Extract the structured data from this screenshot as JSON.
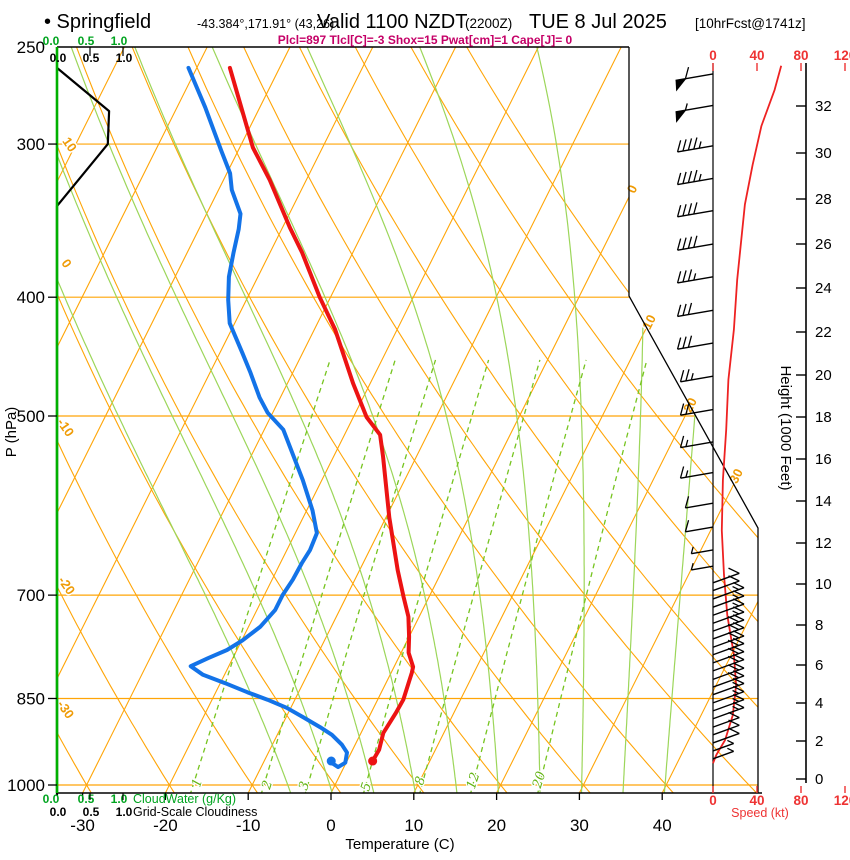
{
  "header": {
    "bullet_station": "• Springfield",
    "coords": "-43.384°,171.91° (43,26)",
    "valid": "Valid 1100 NZDT",
    "zulu": "(2200Z)",
    "date": "TUE 8 Jul 2025",
    "forecast": "[10hrFcst@1741z]",
    "params": "Plcl=897 Tlcl[C]=-3 Shox=15 Pwat[cm]=1 Cape[J]= 0"
  },
  "axes": {
    "pressure_label": "P (hPa)",
    "pressure_ticks": [
      250,
      300,
      400,
      500,
      700,
      850,
      1000
    ],
    "temp_label": "Temperature (C)",
    "temp_ticks": [
      -30,
      -20,
      -10,
      0,
      10,
      20,
      30,
      40
    ],
    "height_label": "Height (1000 Feet)",
    "height_ticks": [
      0,
      2,
      4,
      6,
      8,
      10,
      12,
      14,
      16,
      18,
      20,
      22,
      24,
      26,
      28,
      30,
      32
    ],
    "speed_label": "Speed (kt)",
    "speed_ticks": [
      0,
      40,
      80,
      120
    ],
    "cloudwater_label": "CloudWater (g/Kg)",
    "cloudwater_ticks": [
      "0.0",
      "0.5",
      "1.0"
    ],
    "cloudiness_label": "Grid-Scale Cloudiness",
    "cloudiness_ticks": [
      "0.0",
      "0.5",
      "1.0"
    ]
  },
  "colors": {
    "isotherm_adiabat": "#ffa507",
    "moist_adiabat": "#9cd65a",
    "mixing_ratio": "#76c41f",
    "temperature": "#ec1313",
    "dewpoint": "#1373e8",
    "speed_curve": "#ee2222",
    "speed_axis": "#e33",
    "cloudwater": "#00b000",
    "magenta": "#c50067",
    "boundary": "#000000"
  },
  "chart_data": {
    "type": "line",
    "subtype": "skew-t log-p atmospheric sounding",
    "title": "Springfield sounding valid 1100 NZDT (2200Z) TUE 8 Jul 2025, 10 hr forecast",
    "xlabel": "Temperature (C)",
    "ylabel": "P (hPa)",
    "xlim": [
      -33,
      42
    ],
    "pressure_range_hpa": [
      250,
      1015
    ],
    "grid": {
      "isotherms_c": {
        "start": -80,
        "end": 40,
        "step": 10,
        "labeled": [
          0,
          10,
          20,
          30
        ]
      },
      "dry_adiabats_c": {
        "start": -30,
        "end": 90,
        "step": 10,
        "labeled": [
          10,
          0,
          -10,
          -20,
          -30
        ]
      },
      "moist_adiabats_c": [
        -5,
        0,
        5,
        10,
        15,
        20,
        25,
        30,
        35,
        40
      ],
      "mixing_ratio_g_kg": [
        1,
        2,
        3,
        5,
        8,
        12,
        20
      ],
      "mixing_ratio_labeled": [
        1,
        2,
        3,
        5,
        8,
        12,
        20
      ]
    },
    "temperature_profile_p_T": [
      [
        260,
        -56
      ],
      [
        302,
        -48.4
      ],
      [
        321,
        -44.4
      ],
      [
        351,
        -39.1
      ],
      [
        368,
        -36.1
      ],
      [
        400,
        -31.3
      ],
      [
        425,
        -27.5
      ],
      [
        470,
        -22.1
      ],
      [
        501,
        -18.4
      ],
      [
        518,
        -15.7
      ],
      [
        540,
        -14
      ],
      [
        605,
        -9.6
      ],
      [
        668,
        -5.4
      ],
      [
        702,
        -3.1
      ],
      [
        729,
        -1.3
      ],
      [
        757,
        0
      ],
      [
        780,
        0.9
      ],
      [
        801,
        2.3
      ],
      [
        810,
        2.5
      ],
      [
        852,
        3.1
      ],
      [
        873,
        3
      ],
      [
        907,
        2.7
      ],
      [
        936,
        3.2
      ],
      [
        956,
        3.1
      ]
    ],
    "dewpoint_profile_p_Td": [
      [
        260,
        -61
      ],
      [
        280,
        -56.6
      ],
      [
        304,
        -52
      ],
      [
        317,
        -49.6
      ],
      [
        327,
        -48.4
      ],
      [
        342,
        -45.9
      ],
      [
        352,
        -45.2
      ],
      [
        368,
        -44.4
      ],
      [
        385,
        -43.5
      ],
      [
        402,
        -42.2
      ],
      [
        420,
        -40.6
      ],
      [
        444,
        -37.3
      ],
      [
        461,
        -35.1
      ],
      [
        483,
        -32.5
      ],
      [
        497,
        -30.6
      ],
      [
        513,
        -27.7
      ],
      [
        564,
        -22.3
      ],
      [
        597,
        -19.3
      ],
      [
        623,
        -17.4
      ],
      [
        643,
        -17.2
      ],
      [
        659,
        -17.4
      ],
      [
        680,
        -17.5
      ],
      [
        700,
        -17.8
      ],
      [
        720,
        -17.8
      ],
      [
        743,
        -18.6
      ],
      [
        762,
        -19.9
      ],
      [
        776,
        -21.2
      ],
      [
        788,
        -23
      ],
      [
        800,
        -24.6
      ],
      [
        813,
        -22.6
      ],
      [
        826,
        -19.4
      ],
      [
        840,
        -16.2
      ],
      [
        852,
        -13.3
      ],
      [
        865,
        -10.5
      ],
      [
        880,
        -8
      ],
      [
        897,
        -5.3
      ],
      [
        910,
        -3.4
      ],
      [
        927,
        -1.6
      ],
      [
        941,
        -0.5
      ],
      [
        959,
        -0.1
      ],
      [
        967,
        -0.7
      ],
      [
        958,
        -1.9
      ]
    ],
    "surface": {
      "pressure_hpa": 956,
      "temp_c": 3.1,
      "dewpoint_c": -1.9
    },
    "wind_speed_profile_p_kt": [
      [
        259,
        62
      ],
      [
        271,
        56
      ],
      [
        290,
        44
      ],
      [
        312,
        36
      ],
      [
        336,
        29
      ],
      [
        387,
        22
      ],
      [
        425,
        19
      ],
      [
        467,
        14
      ],
      [
        513,
        12
      ],
      [
        564,
        9
      ],
      [
        620,
        8
      ],
      [
        674,
        10
      ],
      [
        727,
        13
      ],
      [
        783,
        19
      ],
      [
        829,
        21
      ],
      [
        877,
        18
      ],
      [
        919,
        11
      ],
      [
        945,
        3
      ],
      [
        960,
        0
      ]
    ],
    "wind_barbs": [
      {
        "p": 263,
        "kt": 60,
        "dir": "W"
      },
      {
        "p": 279,
        "kt": 55,
        "dir": "W"
      },
      {
        "p": 301,
        "kt": 45,
        "dir": "W"
      },
      {
        "p": 320,
        "kt": 45,
        "dir": "W"
      },
      {
        "p": 340,
        "kt": 40,
        "dir": "W"
      },
      {
        "p": 362,
        "kt": 40,
        "dir": "W"
      },
      {
        "p": 385,
        "kt": 35,
        "dir": "W"
      },
      {
        "p": 410,
        "kt": 30,
        "dir": "W"
      },
      {
        "p": 436,
        "kt": 30,
        "dir": "W"
      },
      {
        "p": 464,
        "kt": 25,
        "dir": "W"
      },
      {
        "p": 494,
        "kt": 20,
        "dir": "W"
      },
      {
        "p": 525,
        "kt": 15,
        "dir": "W"
      },
      {
        "p": 556,
        "kt": 15,
        "dir": "W"
      },
      {
        "p": 589,
        "kt": 10,
        "dir": "W"
      },
      {
        "p": 616,
        "kt": 10,
        "dir": "W"
      },
      {
        "p": 643,
        "kt": 5,
        "dir": "W"
      },
      {
        "p": 663,
        "kt": 5,
        "dir": "W"
      },
      {
        "p": 684,
        "kt": 10,
        "dir": "E"
      },
      {
        "p": 694,
        "kt": 10,
        "dir": "E"
      },
      {
        "p": 705,
        "kt": 15,
        "dir": "E"
      },
      {
        "p": 716,
        "kt": 15,
        "dir": "E"
      },
      {
        "p": 727,
        "kt": 15,
        "dir": "E"
      },
      {
        "p": 738,
        "kt": 15,
        "dir": "E"
      },
      {
        "p": 749,
        "kt": 20,
        "dir": "E"
      },
      {
        "p": 760,
        "kt": 20,
        "dir": "E"
      },
      {
        "p": 772,
        "kt": 20,
        "dir": "E"
      },
      {
        "p": 783,
        "kt": 20,
        "dir": "E"
      },
      {
        "p": 795,
        "kt": 20,
        "dir": "E"
      },
      {
        "p": 807,
        "kt": 20,
        "dir": "E"
      },
      {
        "p": 820,
        "kt": 20,
        "dir": "E"
      },
      {
        "p": 832,
        "kt": 20,
        "dir": "E"
      },
      {
        "p": 844,
        "kt": 15,
        "dir": "E"
      },
      {
        "p": 857,
        "kt": 15,
        "dir": "E"
      },
      {
        "p": 870,
        "kt": 15,
        "dir": "E"
      },
      {
        "p": 883,
        "kt": 15,
        "dir": "E"
      },
      {
        "p": 897,
        "kt": 10,
        "dir": "E"
      },
      {
        "p": 910,
        "kt": 10,
        "dir": "E"
      },
      {
        "p": 924,
        "kt": 10,
        "dir": "E"
      },
      {
        "p": 938,
        "kt": 5,
        "dir": "E"
      },
      {
        "p": 952,
        "kt": 5,
        "dir": "E"
      }
    ],
    "cloudiness_profile_p_frac": [
      [
        260,
        0
      ],
      [
        282,
        0.79
      ],
      [
        300,
        0.77
      ],
      [
        333,
        0.08
      ],
      [
        337,
        0
      ],
      [
        1020,
        0
      ]
    ],
    "cloudwater_profile": "zero at all levels (green line along left axis)"
  }
}
